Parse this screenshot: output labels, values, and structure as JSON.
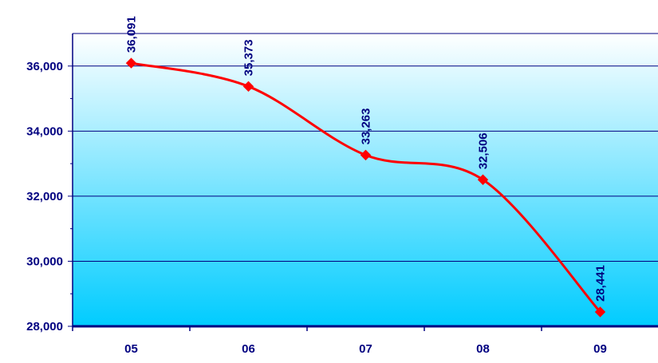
{
  "chart_data": {
    "type": "line",
    "title": "",
    "xlabel": "",
    "ylabel": "",
    "categories": [
      "05",
      "06",
      "07",
      "08",
      "09"
    ],
    "series": [
      {
        "values": [
          36091,
          35373,
          33263,
          32506,
          28441
        ]
      }
    ],
    "data_labels": [
      "36,091",
      "35,373",
      "33,263",
      "32,506",
      "28,441"
    ],
    "y_ticks": [
      "28,000",
      "30,000",
      "32,000",
      "34,000",
      "36,000"
    ],
    "ylim": [
      28000,
      37000
    ],
    "line_smoothed": true,
    "grid": "horizontal",
    "legend": "none",
    "colors": {
      "line": "#ff0000",
      "marker": "#ff0000",
      "gridline": "#000080",
      "axis": "#000080",
      "labels": "#000080",
      "bg_top": "#ffffff",
      "bg_bottom": "#00ccff"
    }
  }
}
